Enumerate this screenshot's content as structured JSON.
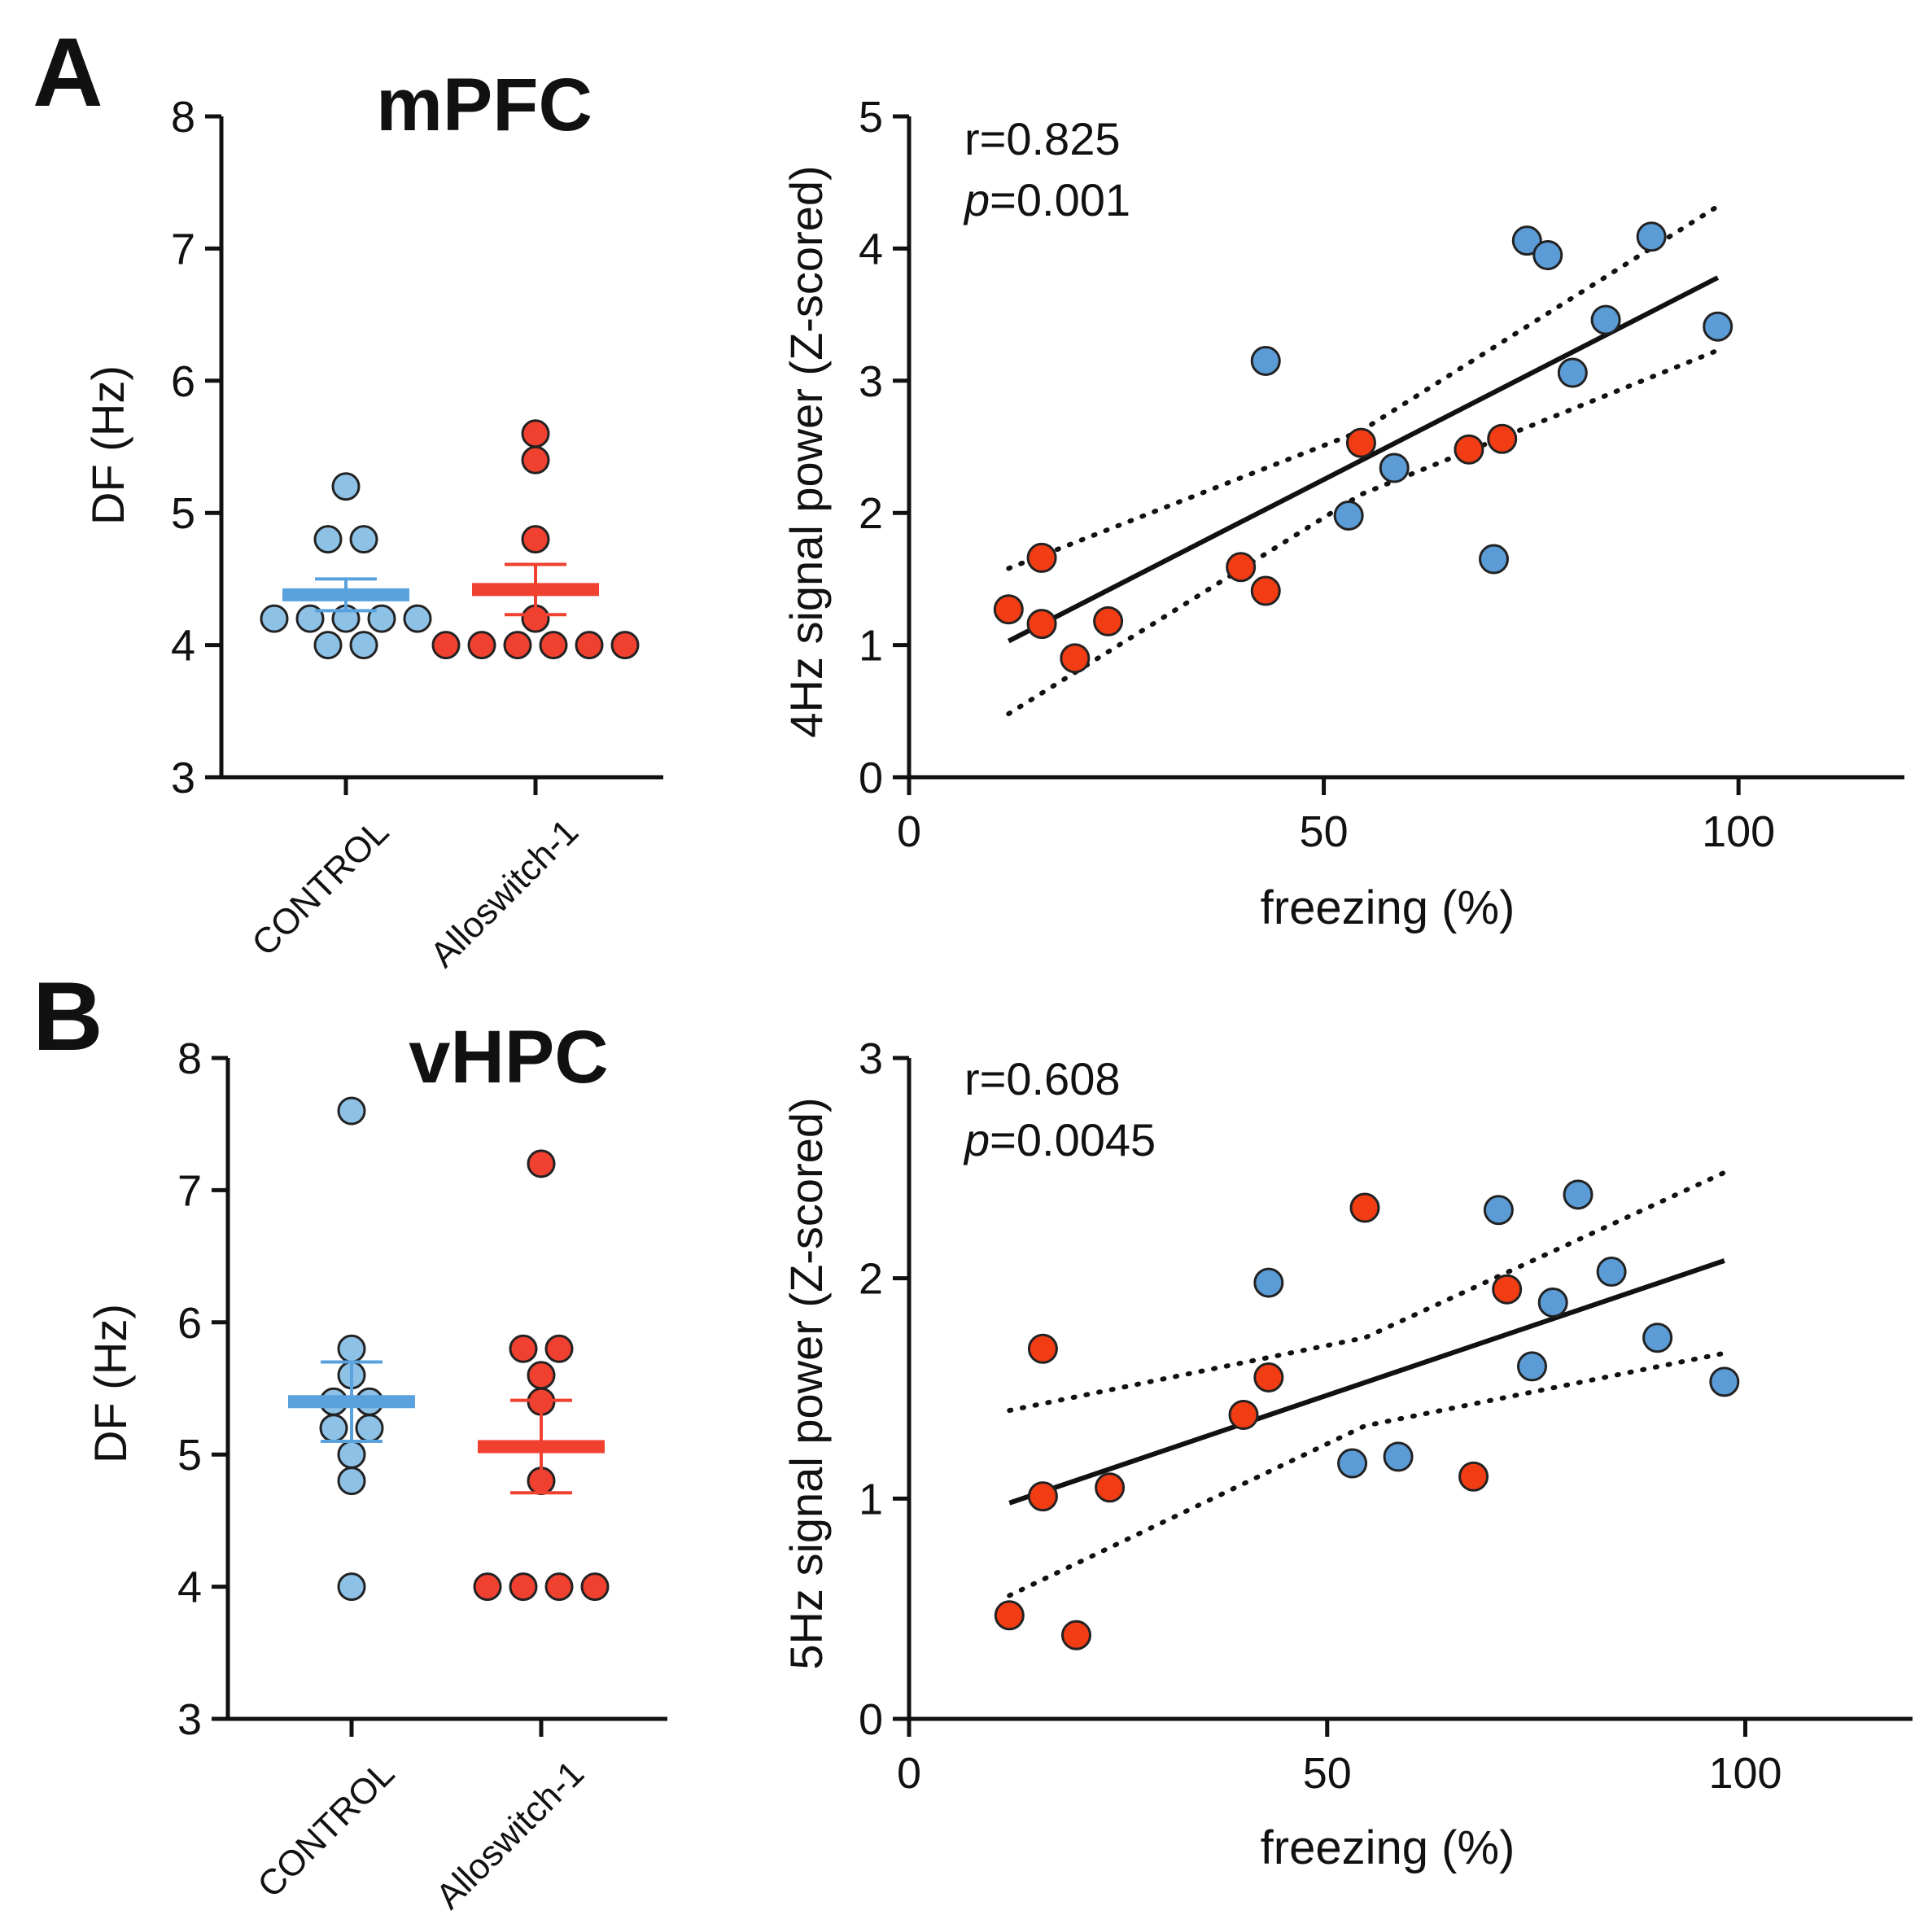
{
  "figure": {
    "colors": {
      "control": "#8ec1e6",
      "alloswitch": "#f0402f",
      "control_mean": "#5aa2de",
      "alloswitch_mean": "#f0402f",
      "control_scatter": "#5b9bd6",
      "alloswitch_scatter": "#f23d14",
      "ink": "#111111"
    }
  },
  "chart_data": [
    {
      "id": "A-dot",
      "type": "scatter",
      "panel_letter": "A",
      "title": "mPFC",
      "xlabel": "",
      "ylabel": "DF (Hz)",
      "ylim": [
        3,
        8
      ],
      "yticks": [
        "3",
        "4",
        "5",
        "6",
        "7",
        "8"
      ],
      "categories": [
        "CONTROL",
        "Alloswitch-1"
      ],
      "series": [
        {
          "name": "CONTROL",
          "values": [
            5.2,
            4.8,
            4.8,
            4.2,
            4.2,
            4.2,
            4.2,
            4.2,
            4.0,
            4.0
          ],
          "mean": 4.38,
          "sem": 0.12
        },
        {
          "name": "Alloswitch-1",
          "values": [
            5.6,
            5.4,
            4.8,
            4.2,
            4.0,
            4.0,
            4.0,
            4.0,
            4.0,
            4.0
          ],
          "mean": 4.42,
          "sem": 0.19
        }
      ]
    },
    {
      "id": "A-scatter",
      "type": "scatter",
      "xlabel": "freezing (%)",
      "ylabel": "4Hz signal power (Z-scored)",
      "xlim": [
        0,
        120
      ],
      "ylim": [
        0,
        5
      ],
      "xticks": [
        "0",
        "50",
        "100"
      ],
      "yticks": [
        "0",
        "1",
        "2",
        "3",
        "4",
        "5"
      ],
      "annotation": {
        "r_label": "r=0.825",
        "p_italic": "p",
        "p_value": "=0.001"
      },
      "series": [
        {
          "name": "CONTROL",
          "points": [
            [
              43,
              3.15
            ],
            [
              53,
              1.98
            ],
            [
              58.5,
              2.34
            ],
            [
              70.5,
              1.65
            ],
            [
              74.5,
              4.06
            ],
            [
              77,
              3.95
            ],
            [
              80,
              3.06
            ],
            [
              84,
              3.46
            ],
            [
              89.5,
              4.09
            ],
            [
              97.5,
              3.41
            ]
          ]
        },
        {
          "name": "Alloswitch-1",
          "points": [
            [
              12,
              1.27
            ],
            [
              16,
              1.66
            ],
            [
              16,
              1.16
            ],
            [
              20,
              0.9
            ],
            [
              24,
              1.18
            ],
            [
              40,
              1.59
            ],
            [
              43,
              1.41
            ],
            [
              54.5,
              2.53
            ],
            [
              67.5,
              2.48
            ],
            [
              71.5,
              2.56
            ]
          ]
        }
      ],
      "fit": {
        "x": [
          12,
          97.5
        ],
        "y": [
          1.03,
          3.78
        ]
      },
      "ci_upper": {
        "x": [
          12,
          54.5,
          97.5
        ],
        "y": [
          1.58,
          2.62,
          4.32
        ]
      },
      "ci_lower": {
        "x": [
          12,
          54.5,
          97.5
        ],
        "y": [
          0.48,
          2.14,
          3.23
        ]
      }
    },
    {
      "id": "B-dot",
      "type": "scatter",
      "panel_letter": "B",
      "title": "vHPC",
      "xlabel": "",
      "ylabel": "DF (Hz)",
      "ylim": [
        3,
        8
      ],
      "yticks": [
        "3",
        "4",
        "5",
        "6",
        "7",
        "8"
      ],
      "categories": [
        "CONTROL",
        "Alloswitch-1"
      ],
      "series": [
        {
          "name": "CONTROL",
          "values": [
            7.6,
            5.8,
            5.6,
            5.4,
            5.4,
            5.2,
            5.2,
            5.0,
            4.8,
            4.0
          ],
          "mean": 5.4,
          "sem": 0.3
        },
        {
          "name": "Alloswitch-1",
          "values": [
            7.2,
            5.8,
            5.8,
            5.6,
            5.4,
            4.8,
            4.0,
            4.0,
            4.0,
            4.0
          ],
          "mean": 5.06,
          "sem": 0.35
        }
      ]
    },
    {
      "id": "B-scatter",
      "type": "scatter",
      "xlabel": "freezing (%)",
      "ylabel": "5Hz signal power (Z-scored)",
      "xlim": [
        0,
        120
      ],
      "ylim": [
        0,
        3
      ],
      "xticks": [
        "0",
        "50",
        "100"
      ],
      "yticks": [
        "0",
        "1",
        "2",
        "3"
      ],
      "annotation": {
        "r_label": "r=0.608",
        "p_italic": "p",
        "p_value": "=0.0045"
      },
      "series": [
        {
          "name": "CONTROL",
          "points": [
            [
              43,
              1.98
            ],
            [
              53,
              1.16
            ],
            [
              58.5,
              1.19
            ],
            [
              70.5,
              2.31
            ],
            [
              74.5,
              1.6
            ],
            [
              77,
              1.89
            ],
            [
              80,
              2.38
            ],
            [
              84,
              2.03
            ],
            [
              89.5,
              1.73
            ],
            [
              97.5,
              1.53
            ]
          ]
        },
        {
          "name": "Alloswitch-1",
          "points": [
            [
              12,
              0.47
            ],
            [
              16,
              1.68
            ],
            [
              16,
              1.01
            ],
            [
              20,
              0.38
            ],
            [
              24,
              1.05
            ],
            [
              40,
              1.38
            ],
            [
              43,
              1.55
            ],
            [
              54.5,
              2.32
            ],
            [
              67.5,
              1.1
            ],
            [
              71.5,
              1.95
            ]
          ]
        }
      ],
      "fit": {
        "x": [
          12,
          97.5
        ],
        "y": [
          0.98,
          2.08
        ]
      },
      "ci_upper": {
        "x": [
          12,
          54.5,
          97.5
        ],
        "y": [
          1.4,
          1.73,
          2.48
        ]
      },
      "ci_lower": {
        "x": [
          12,
          54.5,
          97.5
        ],
        "y": [
          0.56,
          1.33,
          1.66
        ]
      }
    }
  ]
}
